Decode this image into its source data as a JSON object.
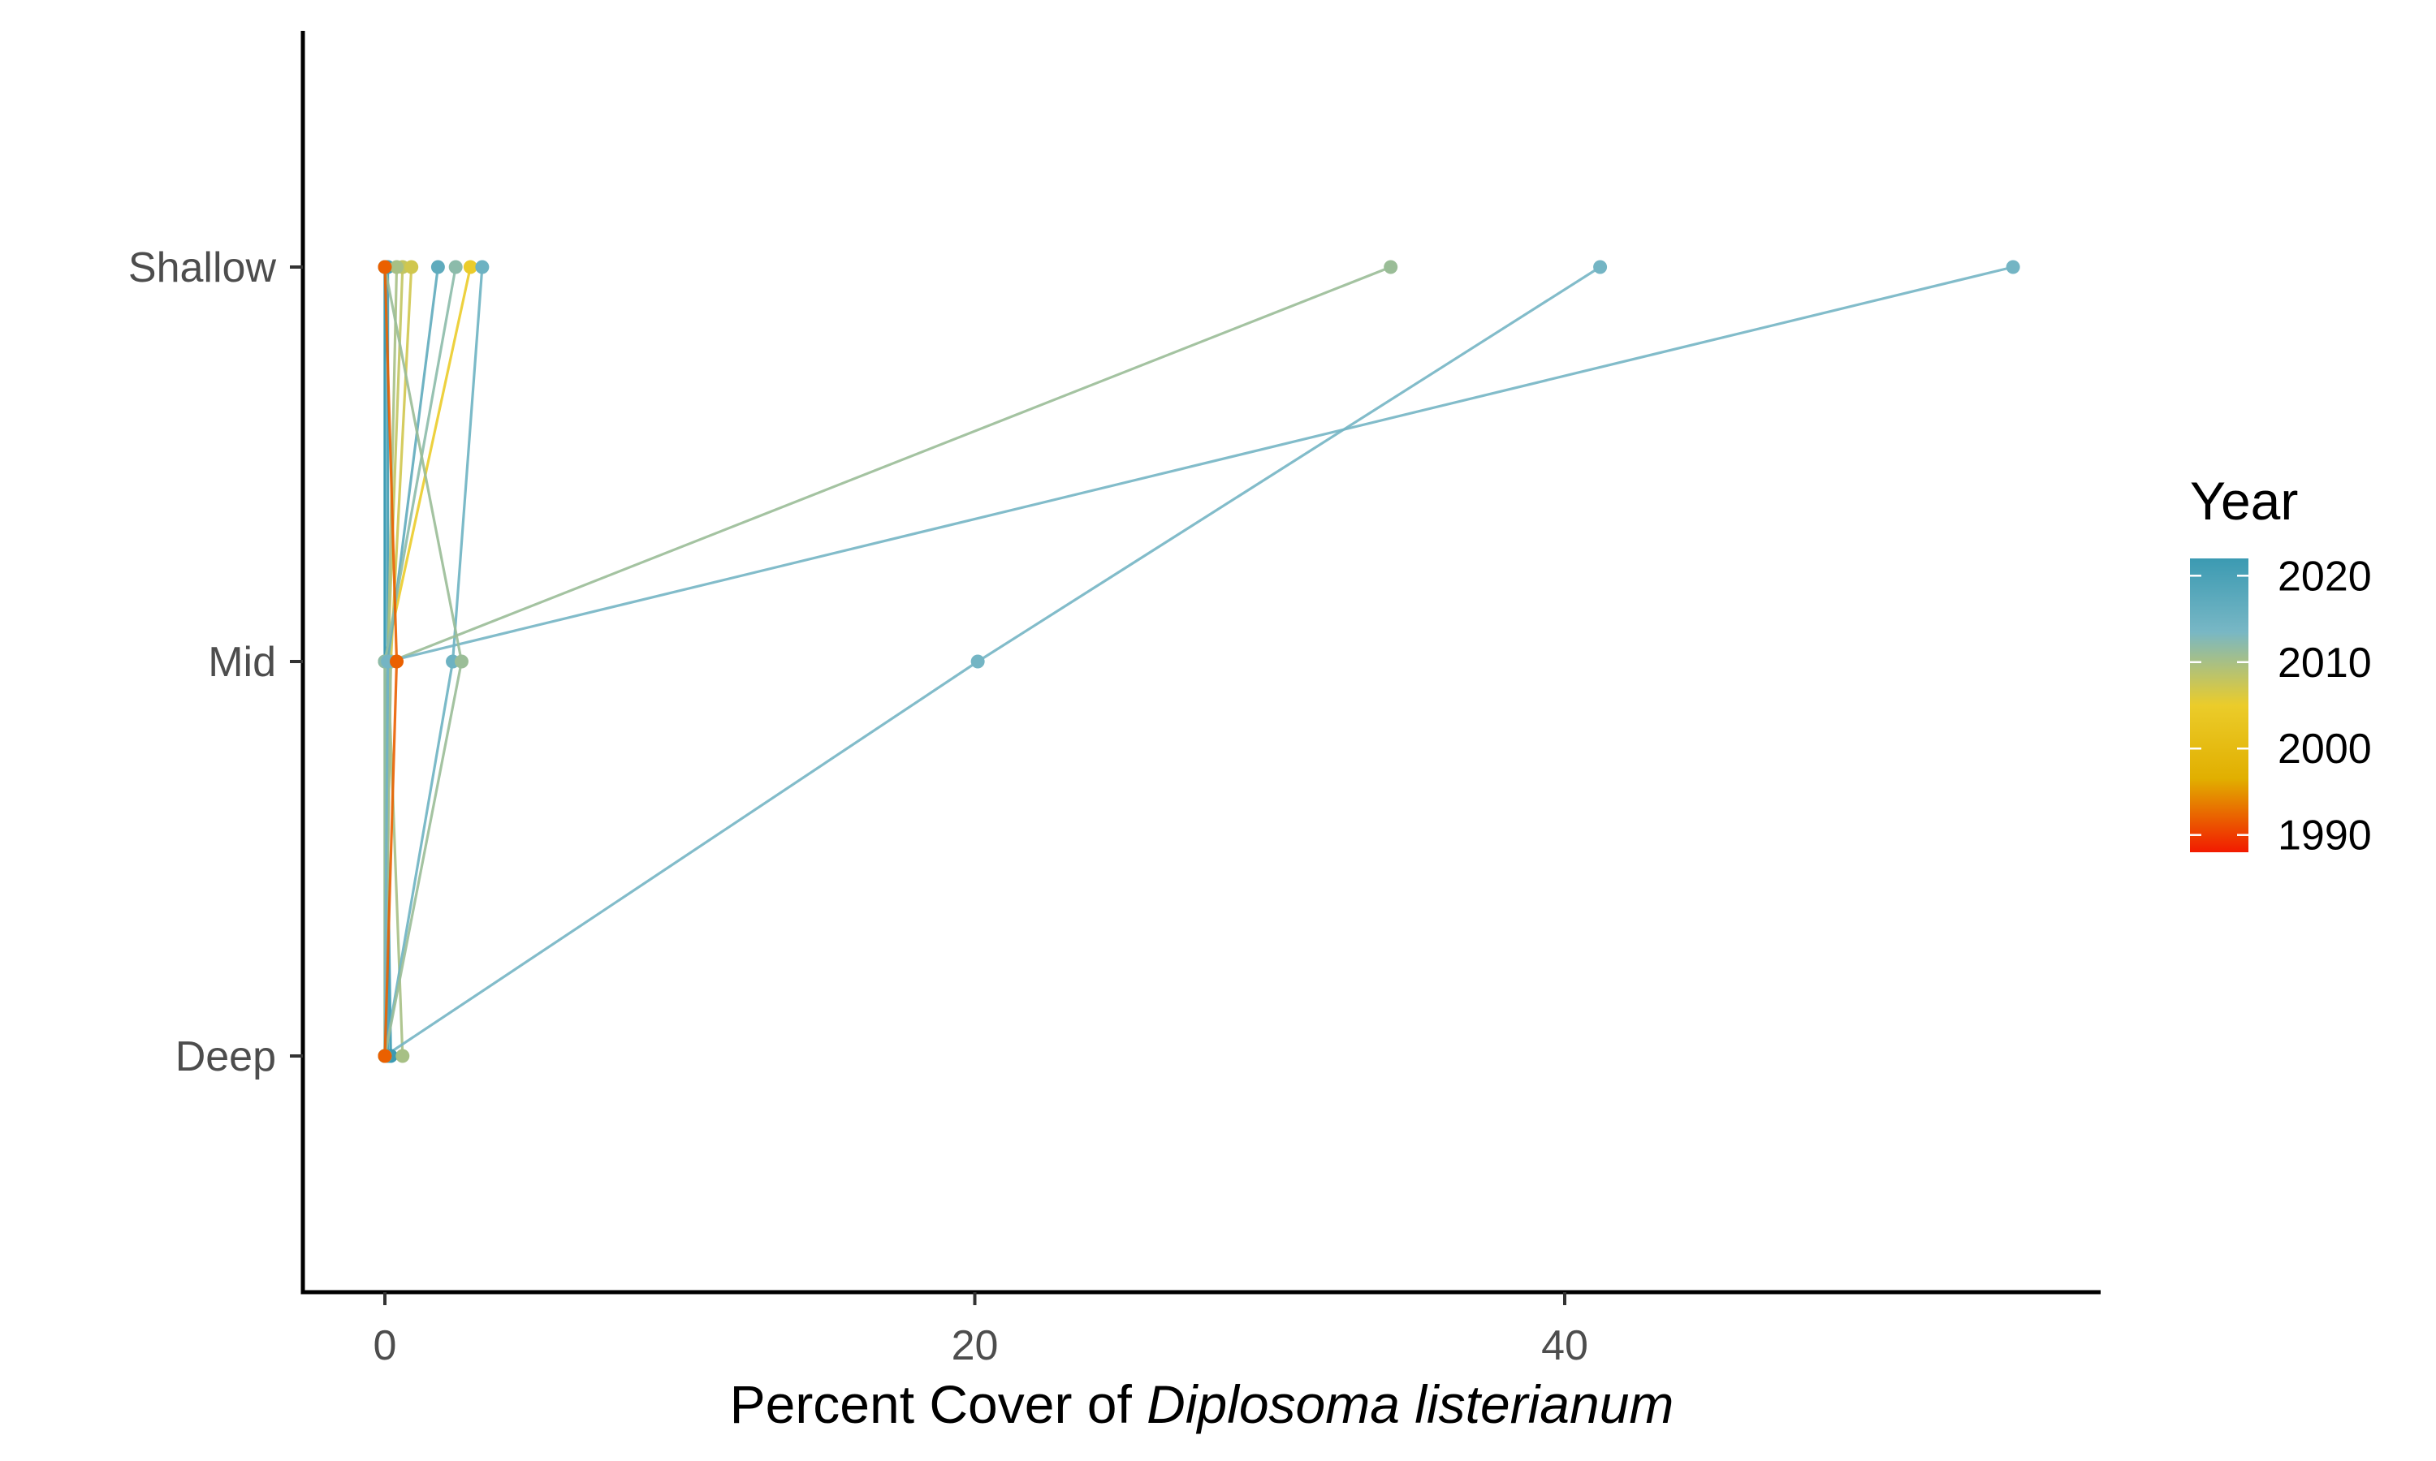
{
  "chart_data": {
    "type": "line",
    "title": "",
    "xlabel_prefix": "Percent Cover of ",
    "xlabel_species": "Diplosoma listerianum",
    "ylabel": "",
    "xlim": [
      -2.5,
      57
    ],
    "x_ticks": [
      "0",
      "20",
      "40"
    ],
    "x_tick_values": [
      0,
      20,
      40
    ],
    "y_categories": [
      "Deep",
      "Mid",
      "Shallow"
    ],
    "grid": false,
    "legend": {
      "title": "Year",
      "placement": "right",
      "labels": [
        "2020",
        "2010",
        "2000",
        "1990"
      ],
      "label_values": [
        2020,
        2010,
        2000,
        1990
      ],
      "range": [
        1988,
        2022
      ],
      "colors": [
        "#f21a00",
        "#e1af00",
        "#ebcc2a",
        "#78b7c5",
        "#3b9ab2"
      ]
    },
    "series": [
      {
        "year": 2020,
        "points": [
          {
            "x": 0.0,
            "y": "Deep"
          },
          {
            "x": 0.0,
            "y": "Mid"
          },
          {
            "x": 0.0,
            "y": "Shallow"
          }
        ]
      },
      {
        "year": 2021,
        "points": [
          {
            "x": 0.1,
            "y": "Deep"
          },
          {
            "x": 0.1,
            "y": "Mid"
          },
          {
            "x": 0.1,
            "y": "Shallow"
          }
        ]
      },
      {
        "year": 2022,
        "points": [
          {
            "x": 0.2,
            "y": "Deep"
          },
          {
            "x": 0.0,
            "y": "Mid"
          },
          {
            "x": 0.0,
            "y": "Shallow"
          }
        ]
      },
      {
        "year": 2008,
        "points": [
          {
            "x": 0.0,
            "y": "Deep"
          },
          {
            "x": 0.1,
            "y": "Mid"
          },
          {
            "x": 0.6,
            "y": "Shallow"
          }
        ]
      },
      {
        "year": 2007,
        "points": [
          {
            "x": 0.0,
            "y": "Deep"
          },
          {
            "x": 0.2,
            "y": "Mid"
          },
          {
            "x": 0.9,
            "y": "Shallow"
          }
        ]
      },
      {
        "year": 2005,
        "points": [
          {
            "x": 0.0,
            "y": "Deep"
          },
          {
            "x": 0.0,
            "y": "Mid"
          },
          {
            "x": 2.9,
            "y": "Shallow"
          }
        ]
      },
      {
        "year": 2010,
        "points": [
          {
            "x": 0.6,
            "y": "Deep"
          },
          {
            "x": 0.1,
            "y": "Mid"
          },
          {
            "x": 0.4,
            "y": "Shallow"
          }
        ]
      },
      {
        "year": 2017,
        "points": [
          {
            "x": 0.0,
            "y": "Deep"
          },
          {
            "x": 0.1,
            "y": "Mid"
          },
          {
            "x": 1.8,
            "y": "Shallow"
          }
        ]
      },
      {
        "year": 2012,
        "points": [
          {
            "x": 0.0,
            "y": "Deep"
          },
          {
            "x": 0.0,
            "y": "Mid"
          },
          {
            "x": 2.4,
            "y": "Shallow"
          }
        ]
      },
      {
        "year": 2015,
        "points": [
          {
            "x": 0.0,
            "y": "Deep"
          },
          {
            "x": 2.3,
            "y": "Mid"
          },
          {
            "x": 3.3,
            "y": "Shallow"
          }
        ]
      },
      {
        "year": 2011,
        "points": [
          {
            "x": 0.0,
            "y": "Deep"
          },
          {
            "x": 0.2,
            "y": "Mid"
          },
          {
            "x": 34.1,
            "y": "Shallow"
          }
        ]
      },
      {
        "year": 2014,
        "points": [
          {
            "x": 0.0,
            "y": "Deep"
          },
          {
            "x": 20.1,
            "y": "Mid"
          },
          {
            "x": 41.2,
            "y": "Shallow"
          }
        ]
      },
      {
        "year": 2014,
        "points": [
          {
            "x": 0.0,
            "y": "Deep"
          },
          {
            "x": 0.1,
            "y": "Mid"
          },
          {
            "x": 55.2,
            "y": "Shallow"
          }
        ]
      },
      {
        "year": 2011,
        "points": [
          {
            "x": 0.0,
            "y": "Deep"
          },
          {
            "x": 2.6,
            "y": "Mid"
          },
          {
            "x": 0.0,
            "y": "Shallow"
          }
        ]
      },
      {
        "year": 1992,
        "points": [
          {
            "x": 0.0,
            "y": "Deep"
          },
          {
            "x": 0.4,
            "y": "Mid"
          },
          {
            "x": 0.0,
            "y": "Shallow"
          }
        ]
      }
    ]
  }
}
